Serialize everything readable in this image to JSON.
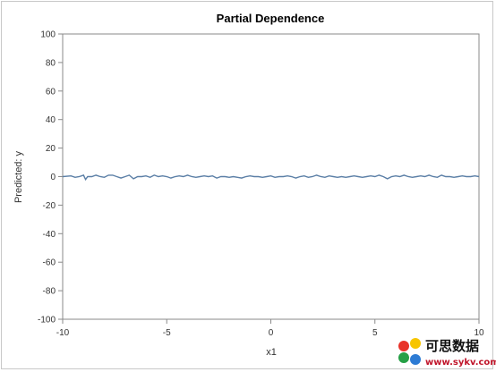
{
  "chart_data": {
    "type": "line",
    "title": "Partial Dependence",
    "xlabel": "x1",
    "ylabel": "Predicted: y",
    "xlim": [
      -10,
      10
    ],
    "ylim": [
      -100,
      100
    ],
    "x_ticks": [
      -10,
      -5,
      0,
      5,
      10
    ],
    "y_ticks": [
      100,
      80,
      60,
      40,
      20,
      0,
      -20,
      -40,
      -60,
      -80,
      -100
    ],
    "grid": false,
    "series": [
      {
        "color": "#5b7fa6",
        "x": [
          -10,
          -9.6,
          -9.4,
          -9.2,
          -9.0,
          -8.9,
          -8.8,
          -8.6,
          -8.4,
          -8.2,
          -8.0,
          -7.8,
          -7.6,
          -7.4,
          -7.2,
          -7.0,
          -6.8,
          -6.6,
          -6.4,
          -6.2,
          -6.0,
          -5.8,
          -5.6,
          -5.4,
          -5.2,
          -5.0,
          -4.8,
          -4.6,
          -4.4,
          -4.2,
          -4.0,
          -3.8,
          -3.6,
          -3.4,
          -3.2,
          -3.0,
          -2.8,
          -2.6,
          -2.4,
          -2.2,
          -2.0,
          -1.8,
          -1.6,
          -1.4,
          -1.2,
          -1.0,
          -0.8,
          -0.6,
          -0.4,
          -0.2,
          0.0,
          0.2,
          0.4,
          0.6,
          0.8,
          1.0,
          1.2,
          1.4,
          1.6,
          1.8,
          2.0,
          2.2,
          2.4,
          2.6,
          2.8,
          3.0,
          3.2,
          3.4,
          3.6,
          3.8,
          4.0,
          4.2,
          4.4,
          4.6,
          4.8,
          5.0,
          5.2,
          5.4,
          5.6,
          5.8,
          6.0,
          6.2,
          6.4,
          6.6,
          6.8,
          7.0,
          7.2,
          7.4,
          7.6,
          7.8,
          8.0,
          8.2,
          8.4,
          8.6,
          8.8,
          9.0,
          9.2,
          9.4,
          9.6,
          9.8,
          10.0
        ],
        "values": [
          0,
          0.5,
          -0.5,
          0,
          1,
          -2,
          0,
          0,
          1,
          0,
          -0.5,
          1,
          1,
          0,
          -1,
          0,
          1,
          -1.5,
          0,
          0,
          0.5,
          -0.5,
          1,
          0,
          0.5,
          0,
          -1,
          0,
          0.5,
          0,
          1,
          0,
          -0.5,
          0,
          0.5,
          0,
          0.5,
          -1,
          0,
          0,
          -0.5,
          0,
          -0.5,
          -1,
          0,
          0.5,
          0,
          0,
          -0.5,
          0,
          0.5,
          -0.5,
          0,
          0,
          0.5,
          0,
          -1,
          0,
          0.5,
          -0.5,
          0,
          1,
          0,
          -0.5,
          0.5,
          0,
          -0.5,
          0,
          -0.5,
          0,
          0.5,
          0,
          -0.5,
          0,
          0.5,
          0,
          1,
          0,
          -1.5,
          0,
          0.5,
          0,
          1,
          0,
          -0.5,
          0,
          0.5,
          0,
          1,
          0,
          -0.5,
          1,
          0,
          0,
          -0.5,
          0,
          0.5,
          0,
          0,
          0.5,
          0
        ]
      }
    ]
  },
  "watermark": {
    "text": "可思数据",
    "url": "www.sykv.com",
    "colors": [
      "#e8332a",
      "#f7c500",
      "#26a046",
      "#2d7bd4"
    ]
  }
}
